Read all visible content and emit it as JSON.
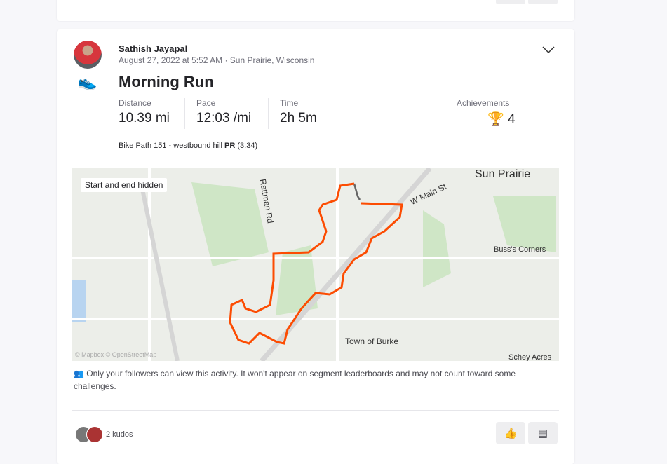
{
  "activity": {
    "athlete": "Sathish Jayapal",
    "meta": "August 27, 2022 at 5:52 AM · Sun Prairie, Wisconsin",
    "title": "Morning Run",
    "sport_icon": "running-shoe-icon",
    "stats": [
      {
        "label": "Distance",
        "value": "10.39 mi"
      },
      {
        "label": "Pace",
        "value": "12:03 /mi"
      },
      {
        "label": "Time",
        "value": "2h 5m"
      }
    ],
    "achievements": {
      "label": "Achievements",
      "value": "4",
      "icon": "trophy-icon"
    },
    "segment": {
      "name": "Bike Path 151 - westbound hill",
      "badge": "PR",
      "time": "(3:34)"
    },
    "map": {
      "badge": "Start and end hidden",
      "labels": [
        "Sun Prairie",
        "W Main St",
        "Rattman Rd",
        "Buss's Corners",
        "Town of Burke",
        "Schey Acres"
      ],
      "attribution": "© Mapbox © OpenStreetMap",
      "route_color": "#fc4c02"
    },
    "privacy": "Only your followers can view this activity. It won't appear on segment leaderboards and may not count toward some challenges.",
    "kudos": "2 kudos"
  }
}
